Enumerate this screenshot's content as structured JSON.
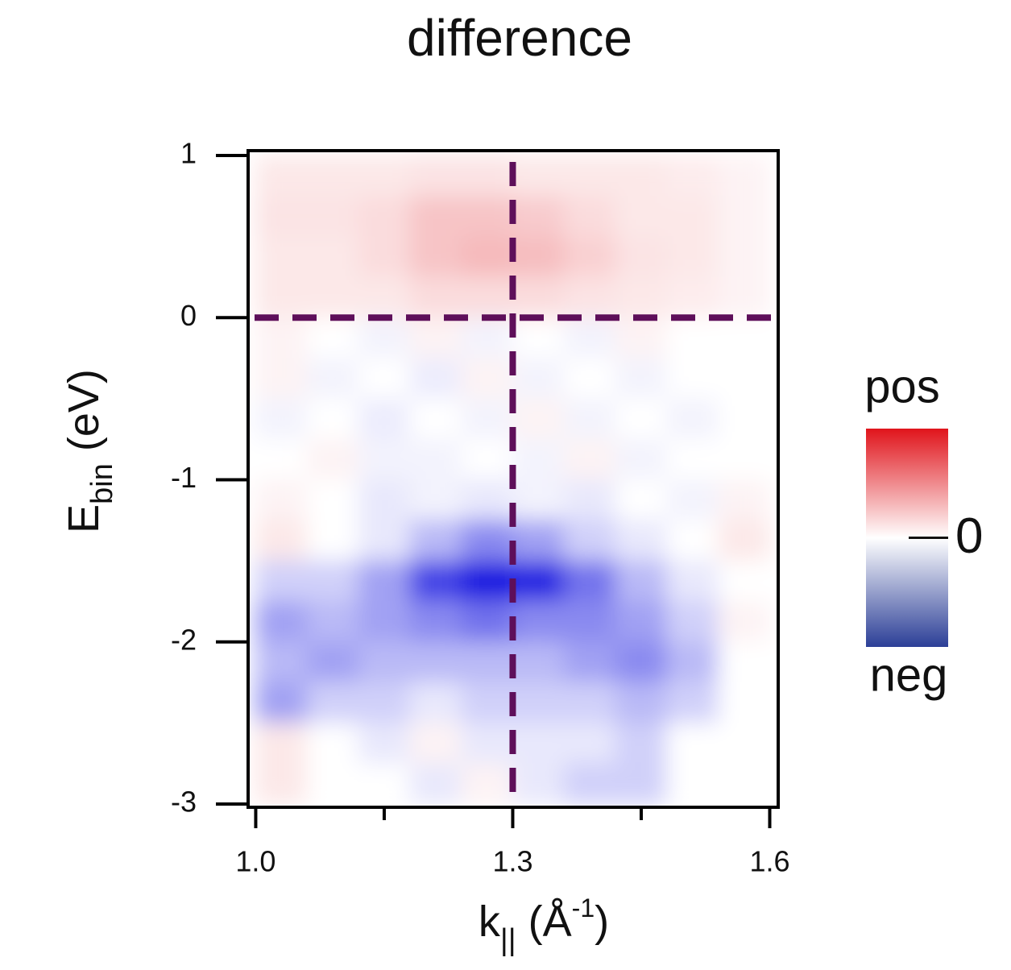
{
  "chart_data": {
    "type": "heatmap",
    "title": "difference",
    "xlabel": {
      "main": "k",
      "sub": "||",
      "rest": " (Å",
      "sup": "-1",
      "end": ")"
    },
    "ylabel": {
      "main": "E",
      "sub": "bin",
      "rest": " (eV)"
    },
    "xlim": [
      0.993,
      1.608
    ],
    "ylim": [
      -3.01,
      1.02
    ],
    "xticks": [
      {
        "value": 1,
        "label": "1.0"
      },
      {
        "value": 1.3,
        "label": "1.3"
      },
      {
        "value": 1.6,
        "label": "1.6"
      }
    ],
    "xminorticks": [
      1.15,
      1.45
    ],
    "yticks": [
      1,
      0,
      -1,
      -2,
      -3
    ],
    "x": [
      1.03,
      1.09,
      1.15,
      1.21,
      1.27,
      1.33,
      1.39,
      1.45,
      1.51,
      1.57
    ],
    "y": [
      0.875,
      0.625,
      0.375,
      0.125,
      -0.125,
      -0.375,
      -0.625,
      -0.875,
      -1.125,
      -1.375,
      -1.625,
      -1.875,
      -2.125,
      -2.375,
      -2.625,
      -2.875
    ],
    "z": [
      [
        0.1,
        0.1,
        0.1,
        0.12,
        0.12,
        0.1,
        0.1,
        0.1,
        0.08,
        0.05
      ],
      [
        0.12,
        0.12,
        0.15,
        0.25,
        0.25,
        0.22,
        0.15,
        0.1,
        0.1,
        0.05
      ],
      [
        0.1,
        0.1,
        0.15,
        0.25,
        0.3,
        0.28,
        0.2,
        0.12,
        0.1,
        0.05
      ],
      [
        0.1,
        0.1,
        0.1,
        0.15,
        0.15,
        0.15,
        0.12,
        0.1,
        0.08,
        0.05
      ],
      [
        0.05,
        0.0,
        -0.05,
        0.05,
        -0.05,
        0.0,
        -0.05,
        0.05,
        0.0,
        0.0
      ],
      [
        0.05,
        -0.05,
        0.0,
        -0.08,
        0.05,
        -0.05,
        0.0,
        -0.05,
        0.0,
        0.0
      ],
      [
        -0.05,
        0.0,
        -0.08,
        0.0,
        -0.05,
        0.05,
        -0.05,
        0.0,
        -0.05,
        0.0
      ],
      [
        0.0,
        0.05,
        -0.05,
        -0.05,
        0.0,
        -0.05,
        0.05,
        -0.05,
        0.0,
        0.0
      ],
      [
        0.05,
        0.0,
        -0.1,
        -0.05,
        -0.1,
        -0.05,
        -0.1,
        0.0,
        -0.05,
        0.05
      ],
      [
        0.1,
        0.0,
        -0.1,
        -0.3,
        -0.5,
        -0.4,
        -0.2,
        -0.1,
        0.0,
        0.1
      ],
      [
        -0.2,
        -0.2,
        -0.4,
        -0.8,
        -1.0,
        -0.95,
        -0.6,
        -0.3,
        -0.1,
        0.0
      ],
      [
        -0.4,
        -0.3,
        -0.4,
        -0.5,
        -0.6,
        -0.5,
        -0.5,
        -0.4,
        -0.2,
        0.05
      ],
      [
        -0.3,
        -0.4,
        -0.3,
        -0.3,
        -0.3,
        -0.3,
        -0.4,
        -0.5,
        -0.3,
        0.0
      ],
      [
        -0.4,
        -0.2,
        -0.2,
        -0.1,
        -0.2,
        -0.2,
        -0.2,
        -0.3,
        -0.2,
        0.0
      ],
      [
        0.1,
        0.0,
        -0.1,
        0.05,
        -0.1,
        -0.1,
        -0.1,
        -0.2,
        0.0,
        0.0
      ],
      [
        0.1,
        0.0,
        0.0,
        -0.1,
        0.05,
        -0.1,
        -0.2,
        -0.2,
        0.0,
        0.0
      ]
    ],
    "clim": [
      -1,
      1
    ],
    "colors": {
      "pos": "#e0141b",
      "zero": "#ffffff",
      "neg": "#1414e0"
    },
    "reference_lines": {
      "x": 1.3,
      "y": 0,
      "color": "#5e0f5a"
    },
    "colorbar": {
      "top_label": "pos",
      "bottom_label": "neg",
      "ticks": [
        0
      ],
      "colors": [
        "#e0141b",
        "#ffffff",
        "#2c3f97"
      ]
    }
  }
}
